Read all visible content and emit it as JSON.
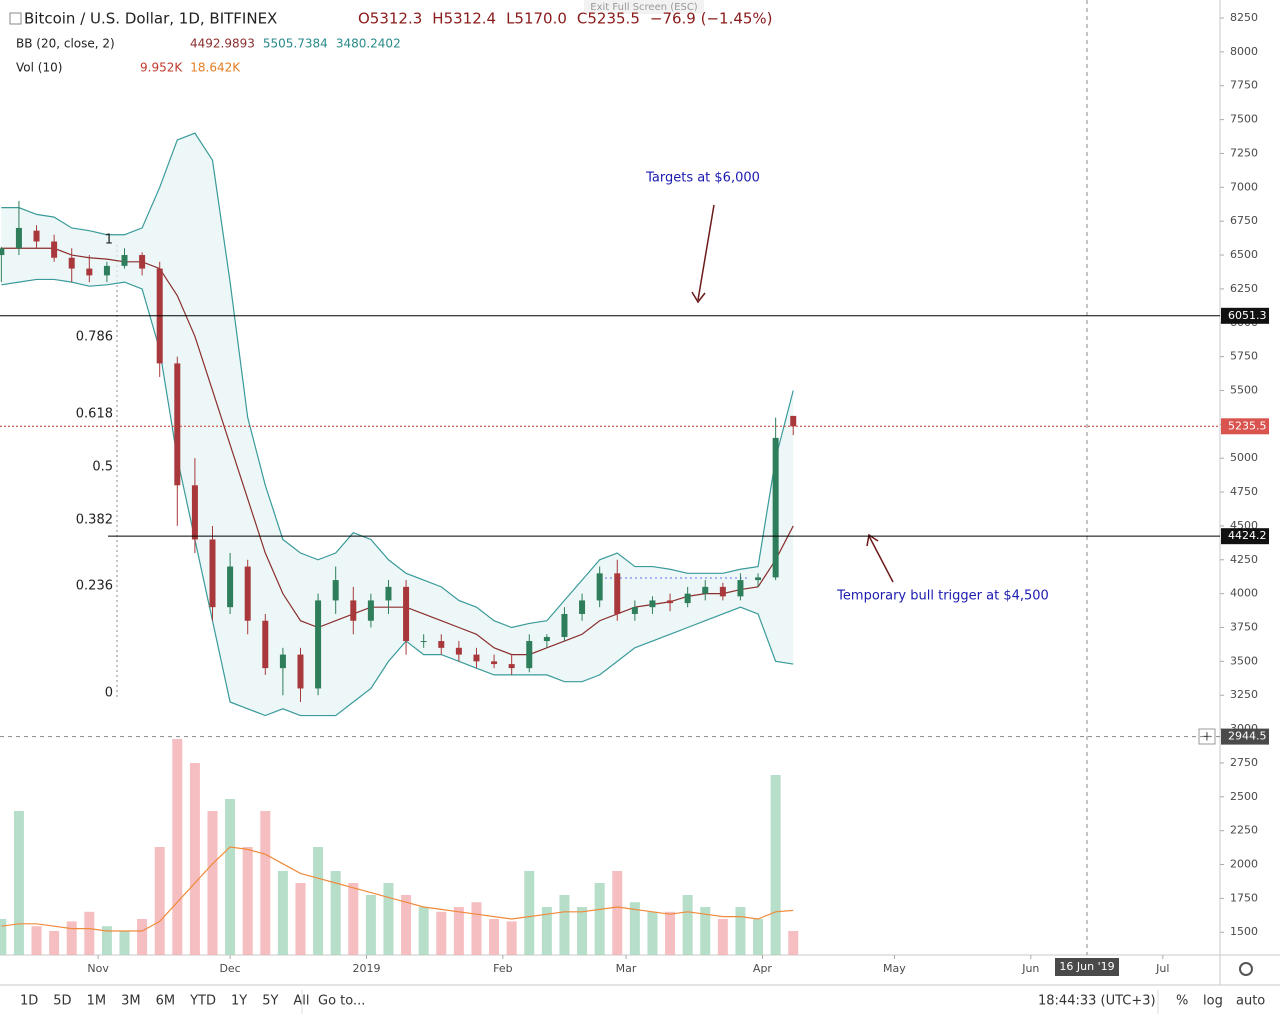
{
  "chart_data": {
    "type": "candlestick",
    "title": "Bitcoin / U.S. Dollar, 1D, BITFINEX",
    "ohlc_labels": [
      "O5312.3",
      "H5312.4",
      "L5170.0",
      "C5235.5",
      "−76.9 (−1.45%)"
    ],
    "bb_label": "BB (20, close, 2)",
    "bb_values": [
      "4492.9893",
      "5505.7384",
      "3480.2402"
    ],
    "vol_label": "Vol (10)",
    "vol_values": [
      "9.952K",
      "18.642K"
    ],
    "exit_label": "Exit Full Screen (ESC)",
    "xlim": [
      -22.3,
      255
    ],
    "xticks": [
      {
        "value": 0,
        "label": "Nov"
      },
      {
        "value": 30,
        "label": "Dec"
      },
      {
        "value": 61,
        "label": "2019"
      },
      {
        "value": 92,
        "label": "Feb"
      },
      {
        "value": 120,
        "label": "Mar"
      },
      {
        "value": 151,
        "label": "Apr"
      },
      {
        "value": 181,
        "label": "May"
      },
      {
        "value": 212,
        "label": "Jun"
      },
      {
        "value": 242,
        "label": "Jul"
      }
    ],
    "ylim": [
      1332,
      8383
    ],
    "yticks": [
      1500,
      1750,
      2000,
      2250,
      2500,
      2750,
      3000,
      3250,
      3500,
      3750,
      4000,
      4250,
      4500,
      4750,
      5000,
      5250,
      5500,
      5750,
      6000,
      6250,
      6500,
      6750,
      7000,
      7250,
      7500,
      7750,
      8000,
      8250
    ],
    "grid": false,
    "x": [
      -22,
      -18,
      -14,
      -10,
      -6,
      -2,
      2,
      6,
      10,
      14,
      18,
      22,
      26,
      30,
      34,
      38,
      42,
      46,
      50,
      54,
      58,
      62,
      66,
      70,
      74,
      78,
      82,
      86,
      90,
      94,
      98,
      102,
      106,
      110,
      114,
      118,
      122,
      126,
      130,
      134,
      138,
      142,
      146,
      150,
      154,
      158
    ],
    "open": [
      6500,
      6550,
      6680,
      6600,
      6480,
      6400,
      6350,
      6420,
      6500,
      6400,
      5700,
      4800,
      4400,
      3900,
      4200,
      3800,
      3450,
      3550,
      3300,
      3950,
      3950,
      3800,
      3950,
      4050,
      3650,
      3650,
      3600,
      3550,
      3500,
      3480,
      3450,
      3650,
      3680,
      3850,
      3950,
      4150,
      3850,
      3900,
      3950,
      3930,
      4000,
      4050,
      3980,
      4100,
      4120,
      5312.3
    ],
    "high": [
      6560,
      6900,
      6720,
      6650,
      6550,
      6500,
      6450,
      6550,
      6520,
      6450,
      5750,
      5000,
      4500,
      4300,
      4250,
      3850,
      3600,
      3600,
      4000,
      4200,
      4050,
      4000,
      4100,
      4100,
      3700,
      3700,
      3650,
      3600,
      3550,
      3550,
      3700,
      3700,
      3900,
      4000,
      4200,
      4250,
      3950,
      3980,
      4000,
      4050,
      4100,
      4080,
      4150,
      4150,
      5300,
      5312.4
    ],
    "low": [
      6300,
      6500,
      6550,
      6450,
      6300,
      6300,
      6300,
      6400,
      6350,
      5600,
      4500,
      4300,
      3800,
      3850,
      3700,
      3400,
      3250,
      3200,
      3250,
      3850,
      3700,
      3750,
      3850,
      3550,
      3600,
      3550,
      3500,
      3450,
      3450,
      3400,
      3420,
      3600,
      3650,
      3800,
      3900,
      3800,
      3800,
      3850,
      3870,
      3900,
      3950,
      3950,
      3950,
      4050,
      4100,
      5170.0
    ],
    "close": [
      6550,
      6700,
      6600,
      6480,
      6400,
      6350,
      6420,
      6500,
      6400,
      5700,
      4800,
      4400,
      3900,
      4200,
      3800,
      3450,
      3550,
      3300,
      3950,
      4100,
      3800,
      3950,
      4050,
      3650,
      3650,
      3600,
      3550,
      3500,
      3480,
      3450,
      3650,
      3680,
      3850,
      3950,
      4150,
      3850,
      3900,
      3950,
      3930,
      4000,
      4050,
      3980,
      4100,
      4120,
      5150,
      5235.5
    ],
    "bb_upper": [
      6850,
      6850,
      6800,
      6780,
      6700,
      6680,
      6650,
      6650,
      6700,
      7000,
      7350,
      7400,
      7200,
      6300,
      5300,
      4800,
      4400,
      4300,
      4250,
      4300,
      4450,
      4400,
      4250,
      4150,
      4100,
      4050,
      3950,
      3900,
      3800,
      3750,
      3780,
      3800,
      3950,
      4100,
      4250,
      4300,
      4200,
      4200,
      4180,
      4150,
      4150,
      4150,
      4180,
      4200,
      5000,
      5500
    ],
    "bb_basis": [
      6550,
      6550,
      6550,
      6550,
      6500,
      6480,
      6470,
      6450,
      6450,
      6400,
      6200,
      5900,
      5500,
      5100,
      4700,
      4300,
      4000,
      3800,
      3750,
      3800,
      3850,
      3900,
      3900,
      3900,
      3850,
      3800,
      3750,
      3700,
      3600,
      3550,
      3550,
      3600,
      3650,
      3700,
      3800,
      3850,
      3900,
      3920,
      3940,
      3980,
      4000,
      4000,
      4030,
      4050,
      4250,
      4500
    ],
    "bb_lower": [
      6280,
      6300,
      6320,
      6320,
      6300,
      6270,
      6280,
      6300,
      6250,
      5800,
      5000,
      4400,
      3800,
      3200,
      3150,
      3100,
      3150,
      3100,
      3100,
      3100,
      3200,
      3300,
      3500,
      3650,
      3550,
      3550,
      3500,
      3450,
      3400,
      3400,
      3400,
      3400,
      3350,
      3350,
      3400,
      3500,
      3600,
      3650,
      3700,
      3750,
      3800,
      3850,
      3900,
      3850,
      3500,
      3480
    ],
    "volume": [
      15,
      60,
      12,
      10,
      14,
      18,
      12,
      10,
      15,
      45,
      90,
      80,
      60,
      65,
      45,
      60,
      35,
      30,
      45,
      35,
      30,
      25,
      30,
      25,
      20,
      18,
      20,
      22,
      15,
      14,
      35,
      20,
      25,
      20,
      30,
      35,
      22,
      18,
      18,
      25,
      20,
      15,
      20,
      15,
      75,
      10
    ],
    "volume_ma": [
      12,
      13,
      13,
      12,
      11,
      11,
      10,
      10,
      10,
      14,
      22,
      30,
      38,
      45,
      44,
      42,
      38,
      34,
      32,
      30,
      28,
      26,
      24,
      22,
      20,
      19,
      18,
      17,
      16,
      15,
      16,
      17,
      18,
      18,
      19,
      20,
      19,
      18,
      17,
      18,
      17,
      16,
      16,
      15,
      18,
      18.6
    ],
    "fib": [
      {
        "value": 6573,
        "label": "1"
      },
      {
        "value": 5857,
        "label": "0.786"
      },
      {
        "value": 5289,
        "label": "0.618"
      },
      {
        "value": 4898,
        "label": "0.5"
      },
      {
        "value": 4506,
        "label": "0.382"
      },
      {
        "value": 4019,
        "label": "0.236"
      },
      {
        "value": 3229,
        "label": "0"
      }
    ],
    "levels": [
      6051.3,
      4424.2
    ],
    "last_price": 5235.5,
    "crosshair_price": 2944.5,
    "crosshair_date": "16 Jun '19",
    "annotations": [
      "Targets at $6,000",
      "Temporary bull trigger at $4,500"
    ],
    "up_color": "#2e7d5b",
    "down_color": "#a8383b",
    "band_color": "#3a9a9a",
    "basis_color": "#8b2e2e"
  },
  "toolbar": {
    "ranges": [
      "1D",
      "5D",
      "1M",
      "3M",
      "6M",
      "YTD",
      "1Y",
      "5Y",
      "All"
    ],
    "goto": "Go to...",
    "clock": "18:44:33 (UTC+3)",
    "options": [
      "%",
      "log",
      "auto"
    ]
  }
}
